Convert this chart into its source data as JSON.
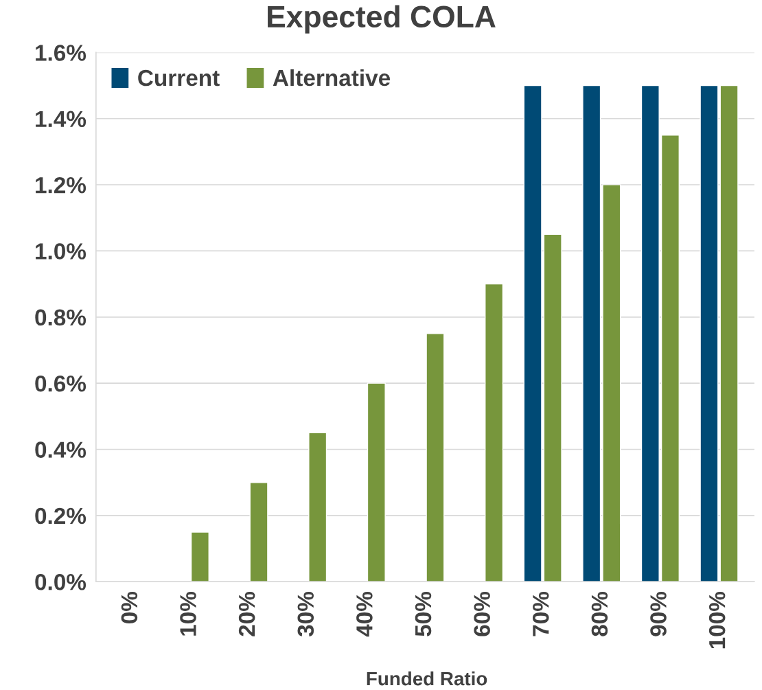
{
  "chart_data": {
    "type": "bar",
    "title": "Expected COLA",
    "xlabel": "Funded Ratio",
    "categories": [
      "0%",
      "10%",
      "20%",
      "30%",
      "40%",
      "50%",
      "60%",
      "70%",
      "80%",
      "90%",
      "100%"
    ],
    "series": [
      {
        "name": "Current",
        "color": "#004a75",
        "values": [
          null,
          null,
          null,
          null,
          null,
          null,
          null,
          1.5,
          1.5,
          1.5,
          1.5
        ]
      },
      {
        "name": "Alternative",
        "color": "#77963c",
        "values": [
          null,
          0.15,
          0.3,
          0.45,
          0.6,
          0.75,
          0.9,
          1.05,
          1.2,
          1.35,
          1.5
        ]
      }
    ],
    "ylim": [
      0,
      1.6
    ],
    "yticks": [
      {
        "value": 0,
        "label": "0.0%"
      },
      {
        "value": 0.2,
        "label": "0.2%"
      },
      {
        "value": 0.4,
        "label": "0.4%"
      },
      {
        "value": 0.6,
        "label": "0.6%"
      },
      {
        "value": 0.8,
        "label": "0.8%"
      },
      {
        "value": 1.0,
        "label": "1.0%"
      },
      {
        "value": 1.2,
        "label": "1.2%"
      },
      {
        "value": 1.4,
        "label": "1.4%"
      },
      {
        "value": 1.6,
        "label": "1.6%"
      }
    ],
    "grid": "y",
    "legend": "top left"
  }
}
